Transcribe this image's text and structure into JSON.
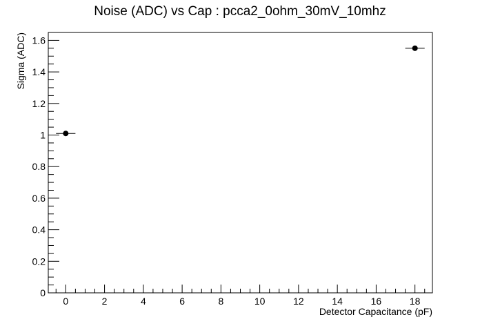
{
  "chart_data": {
    "type": "scatter",
    "title": "Noise (ADC) vs Cap : pcca2_0ohm_30mV_10mhz",
    "xlabel": "Detector Capacitance (pF)",
    "ylabel": "Sigma (ADC)",
    "xlim": [
      -0.9,
      18.9
    ],
    "ylim": [
      0,
      1.65
    ],
    "x_ticks": [
      0,
      2,
      4,
      6,
      8,
      10,
      12,
      14,
      16,
      18
    ],
    "x_tick_labels": [
      "0",
      "2",
      "4",
      "6",
      "8",
      "10",
      "12",
      "14",
      "16",
      "18"
    ],
    "y_ticks": [
      0,
      0.2,
      0.4,
      0.6,
      0.8,
      1,
      1.2,
      1.4,
      1.6
    ],
    "y_tick_labels": [
      "0",
      "0.2",
      "0.4",
      "0.6",
      "0.8",
      "1",
      "1.2",
      "1.4",
      "1.6"
    ],
    "grid": false,
    "legend": "none",
    "points": [
      {
        "x": 0,
        "y": 1.01,
        "xerr": 0.5
      },
      {
        "x": 18,
        "y": 1.55,
        "xerr": 0.5
      }
    ],
    "colors": {
      "marker": "#000000",
      "axis": "#000000",
      "background": "#ffffff"
    }
  }
}
